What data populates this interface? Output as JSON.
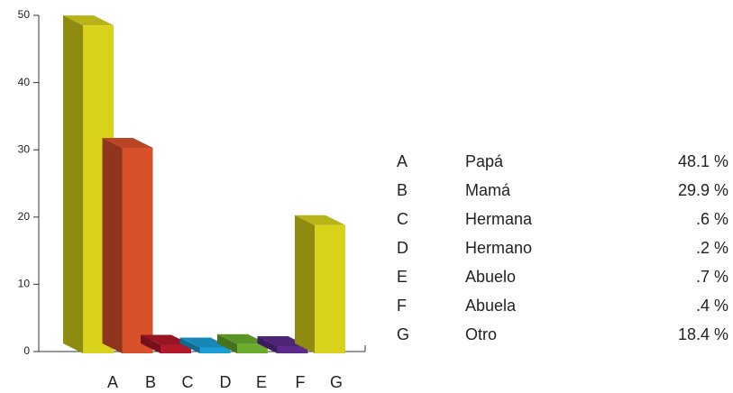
{
  "chart_data": {
    "type": "bar3d",
    "categories": [
      "A",
      "B",
      "C",
      "D",
      "E",
      "F",
      "G"
    ],
    "labels": [
      "Papá",
      "Mamá",
      "Hermana",
      "Hermano",
      "Abuelo",
      "Abuela",
      "Otro"
    ],
    "values": [
      48.1,
      29.9,
      0.6,
      0.2,
      0.7,
      0.4,
      18.4
    ],
    "value_labels": [
      "48.1 %",
      "29.9 %",
      ".6 %",
      ".2 %",
      ".7 %",
      ".4 %",
      "18.4 %"
    ],
    "colors": [
      "#d8d21a",
      "#d9512a",
      "#b3182b",
      "#1a9fd6",
      "#6aad2d",
      "#5b2a8c",
      "#d8d21a"
    ],
    "ylim": [
      0,
      50
    ],
    "yticks": [
      0,
      10,
      20,
      30,
      40,
      50
    ]
  }
}
